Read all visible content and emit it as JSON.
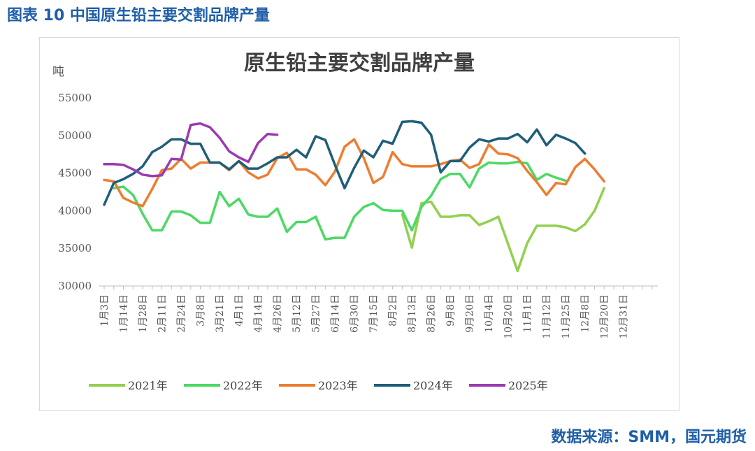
{
  "figure": {
    "title": "图表 10 中国原生铅主要交割品牌产量",
    "source": "数据来源：SMM，国元期货"
  },
  "chart_data": {
    "type": "line",
    "title": "原生铅主要交割品牌产量",
    "ylabel": "吨",
    "xlabel": "",
    "ylim": [
      30000,
      55000
    ],
    "yticks": [
      30000,
      35000,
      40000,
      45000,
      50000,
      55000
    ],
    "x_points": 58,
    "x_ticks": [
      {
        "i": 0,
        "label": "1月3日"
      },
      {
        "i": 2,
        "label": "1月14日"
      },
      {
        "i": 4,
        "label": "1月28日"
      },
      {
        "i": 6,
        "label": "2月11日"
      },
      {
        "i": 8,
        "label": "2月24日"
      },
      {
        "i": 10,
        "label": "3月8日"
      },
      {
        "i": 12,
        "label": "3月21日"
      },
      {
        "i": 14,
        "label": "4月1日"
      },
      {
        "i": 16,
        "label": "4月14日"
      },
      {
        "i": 18,
        "label": "4月26日"
      },
      {
        "i": 20,
        "label": "5月12日"
      },
      {
        "i": 22,
        "label": "5月27日"
      },
      {
        "i": 24,
        "label": "6月14日"
      },
      {
        "i": 26,
        "label": "6月30日"
      },
      {
        "i": 28,
        "label": "7月15日"
      },
      {
        "i": 30,
        "label": "8月2日"
      },
      {
        "i": 32,
        "label": "8月13日"
      },
      {
        "i": 34,
        "label": "8月26日"
      },
      {
        "i": 36,
        "label": "9月8日"
      },
      {
        "i": 38,
        "label": "9月20日"
      },
      {
        "i": 40,
        "label": "10月4日"
      },
      {
        "i": 42,
        "label": "10月20日"
      },
      {
        "i": 44,
        "label": "11月1日"
      },
      {
        "i": 46,
        "label": "11月12日"
      },
      {
        "i": 48,
        "label": "11月25日"
      },
      {
        "i": 50,
        "label": "12月8日"
      },
      {
        "i": 52,
        "label": "12月20日"
      },
      {
        "i": 54,
        "label": "12月31日"
      }
    ],
    "series": [
      {
        "name": "2021年",
        "color": "#92d050",
        "start": 31,
        "values": [
          39500,
          35100,
          41000,
          41200,
          39200,
          39200,
          39400,
          39400,
          38100,
          38600,
          39200,
          35600,
          32000,
          35700,
          38000,
          38000,
          38000,
          37800,
          37300,
          38200,
          40000,
          43000
        ]
      },
      {
        "name": "2022年",
        "color": "#4cd964",
        "start": 1,
        "values": [
          43000,
          43200,
          42100,
          39600,
          37400,
          37400,
          39900,
          39900,
          39400,
          38400,
          38400,
          42500,
          40600,
          41600,
          39500,
          39200,
          39200,
          40300,
          37200,
          38500,
          38500,
          39200,
          36200,
          36400,
          36400,
          39200,
          40500,
          41000,
          40100,
          40000,
          40000,
          37400,
          40500,
          42000,
          44200,
          44900,
          44900,
          43100,
          45600,
          46400,
          46300,
          46300,
          46500,
          46300,
          44100,
          44900,
          44400,
          44000
        ]
      },
      {
        "name": "2023年",
        "color": "#ed7d31",
        "start": 0,
        "values": [
          44100,
          43900,
          41700,
          41100,
          40600,
          42900,
          45400,
          45600,
          46900,
          45600,
          46400,
          46400,
          46400,
          45400,
          46600,
          45100,
          44300,
          44800,
          47000,
          47700,
          45500,
          45500,
          44800,
          43400,
          45200,
          48500,
          49500,
          47000,
          43700,
          44500,
          47800,
          46200,
          45900,
          45900,
          45900,
          46200,
          46600,
          46800,
          45700,
          46200,
          48800,
          47600,
          47500,
          47000,
          45300,
          43800,
          42100,
          43700,
          43500,
          45800,
          46900,
          45500,
          43900
        ]
      },
      {
        "name": "2024年",
        "color": "#1f5e7a",
        "start": 0,
        "values": [
          40800,
          43700,
          44200,
          44900,
          45900,
          47800,
          48500,
          49500,
          49500,
          48900,
          48900,
          46400,
          46400,
          45500,
          46600,
          45600,
          45600,
          46300,
          47100,
          47100,
          48100,
          47100,
          49900,
          49400,
          46100,
          43000,
          45700,
          48000,
          47100,
          49300,
          48900,
          51800,
          51900,
          51700,
          50100,
          45100,
          46600,
          46600,
          48400,
          49500,
          49200,
          49600,
          49600,
          50200,
          49100,
          50800,
          48700,
          50100,
          49600,
          49000,
          47600
        ]
      },
      {
        "name": "2025年",
        "color": "#9b3bb1",
        "start": 0,
        "values": [
          46200,
          46200,
          46100,
          45500,
          44800,
          44600,
          44700,
          46900,
          46800,
          51400,
          51600,
          51100,
          49700,
          47900,
          47100,
          46500,
          49000,
          50200,
          50100
        ]
      }
    ]
  }
}
